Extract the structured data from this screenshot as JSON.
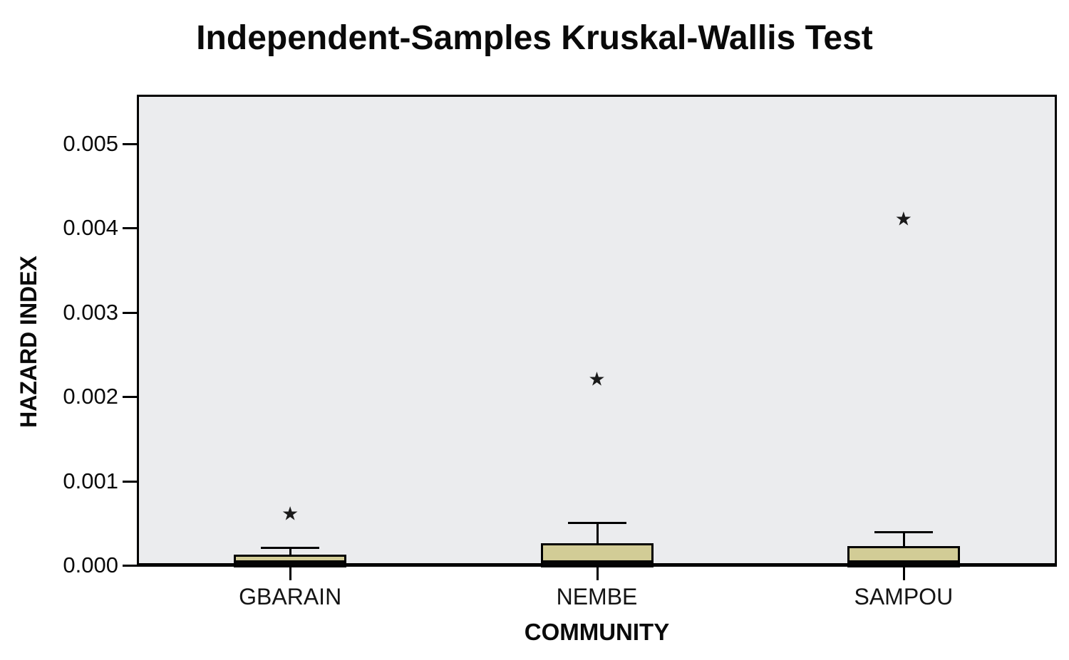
{
  "colors": {
    "box_fill": "#d2cc96",
    "box_border": "#000000",
    "plot_background": "#ebecee",
    "page_background": "#ffffff",
    "text": "#0a0a0a"
  },
  "chart_data": {
    "type": "boxplot",
    "title": "Independent-Samples Kruskal-Wallis Test",
    "xlabel": "COMMUNITY",
    "ylabel": "HAZARD INDEX",
    "ylim": [
      0.0,
      0.00558
    ],
    "grid": false,
    "legend": false,
    "y_ticks": [
      0.0,
      0.001,
      0.002,
      0.003,
      0.004,
      0.005
    ],
    "y_tick_labels": [
      "0.000",
      "0.001",
      "0.002",
      "0.003",
      "0.004",
      "0.005"
    ],
    "categories": [
      "GBARAIN",
      "NEMBE",
      "SAMPOU"
    ],
    "outlier_marker": "star",
    "series": [
      {
        "category": "GBARAIN",
        "whisker_low": 0.0,
        "q1": 0.0,
        "median": 3e-05,
        "q3": 0.00013,
        "whisker_high": 0.00021,
        "outliers": [
          0.0006
        ]
      },
      {
        "category": "NEMBE",
        "whisker_low": 0.0,
        "q1": 0.0,
        "median": 4e-05,
        "q3": 0.00026,
        "whisker_high": 0.00051,
        "outliers": [
          0.0022
        ]
      },
      {
        "category": "SAMPOU",
        "whisker_low": 0.0,
        "q1": 0.0,
        "median": 4e-05,
        "q3": 0.00023,
        "whisker_high": 0.0004,
        "outliers": [
          0.0041
        ]
      }
    ]
  }
}
